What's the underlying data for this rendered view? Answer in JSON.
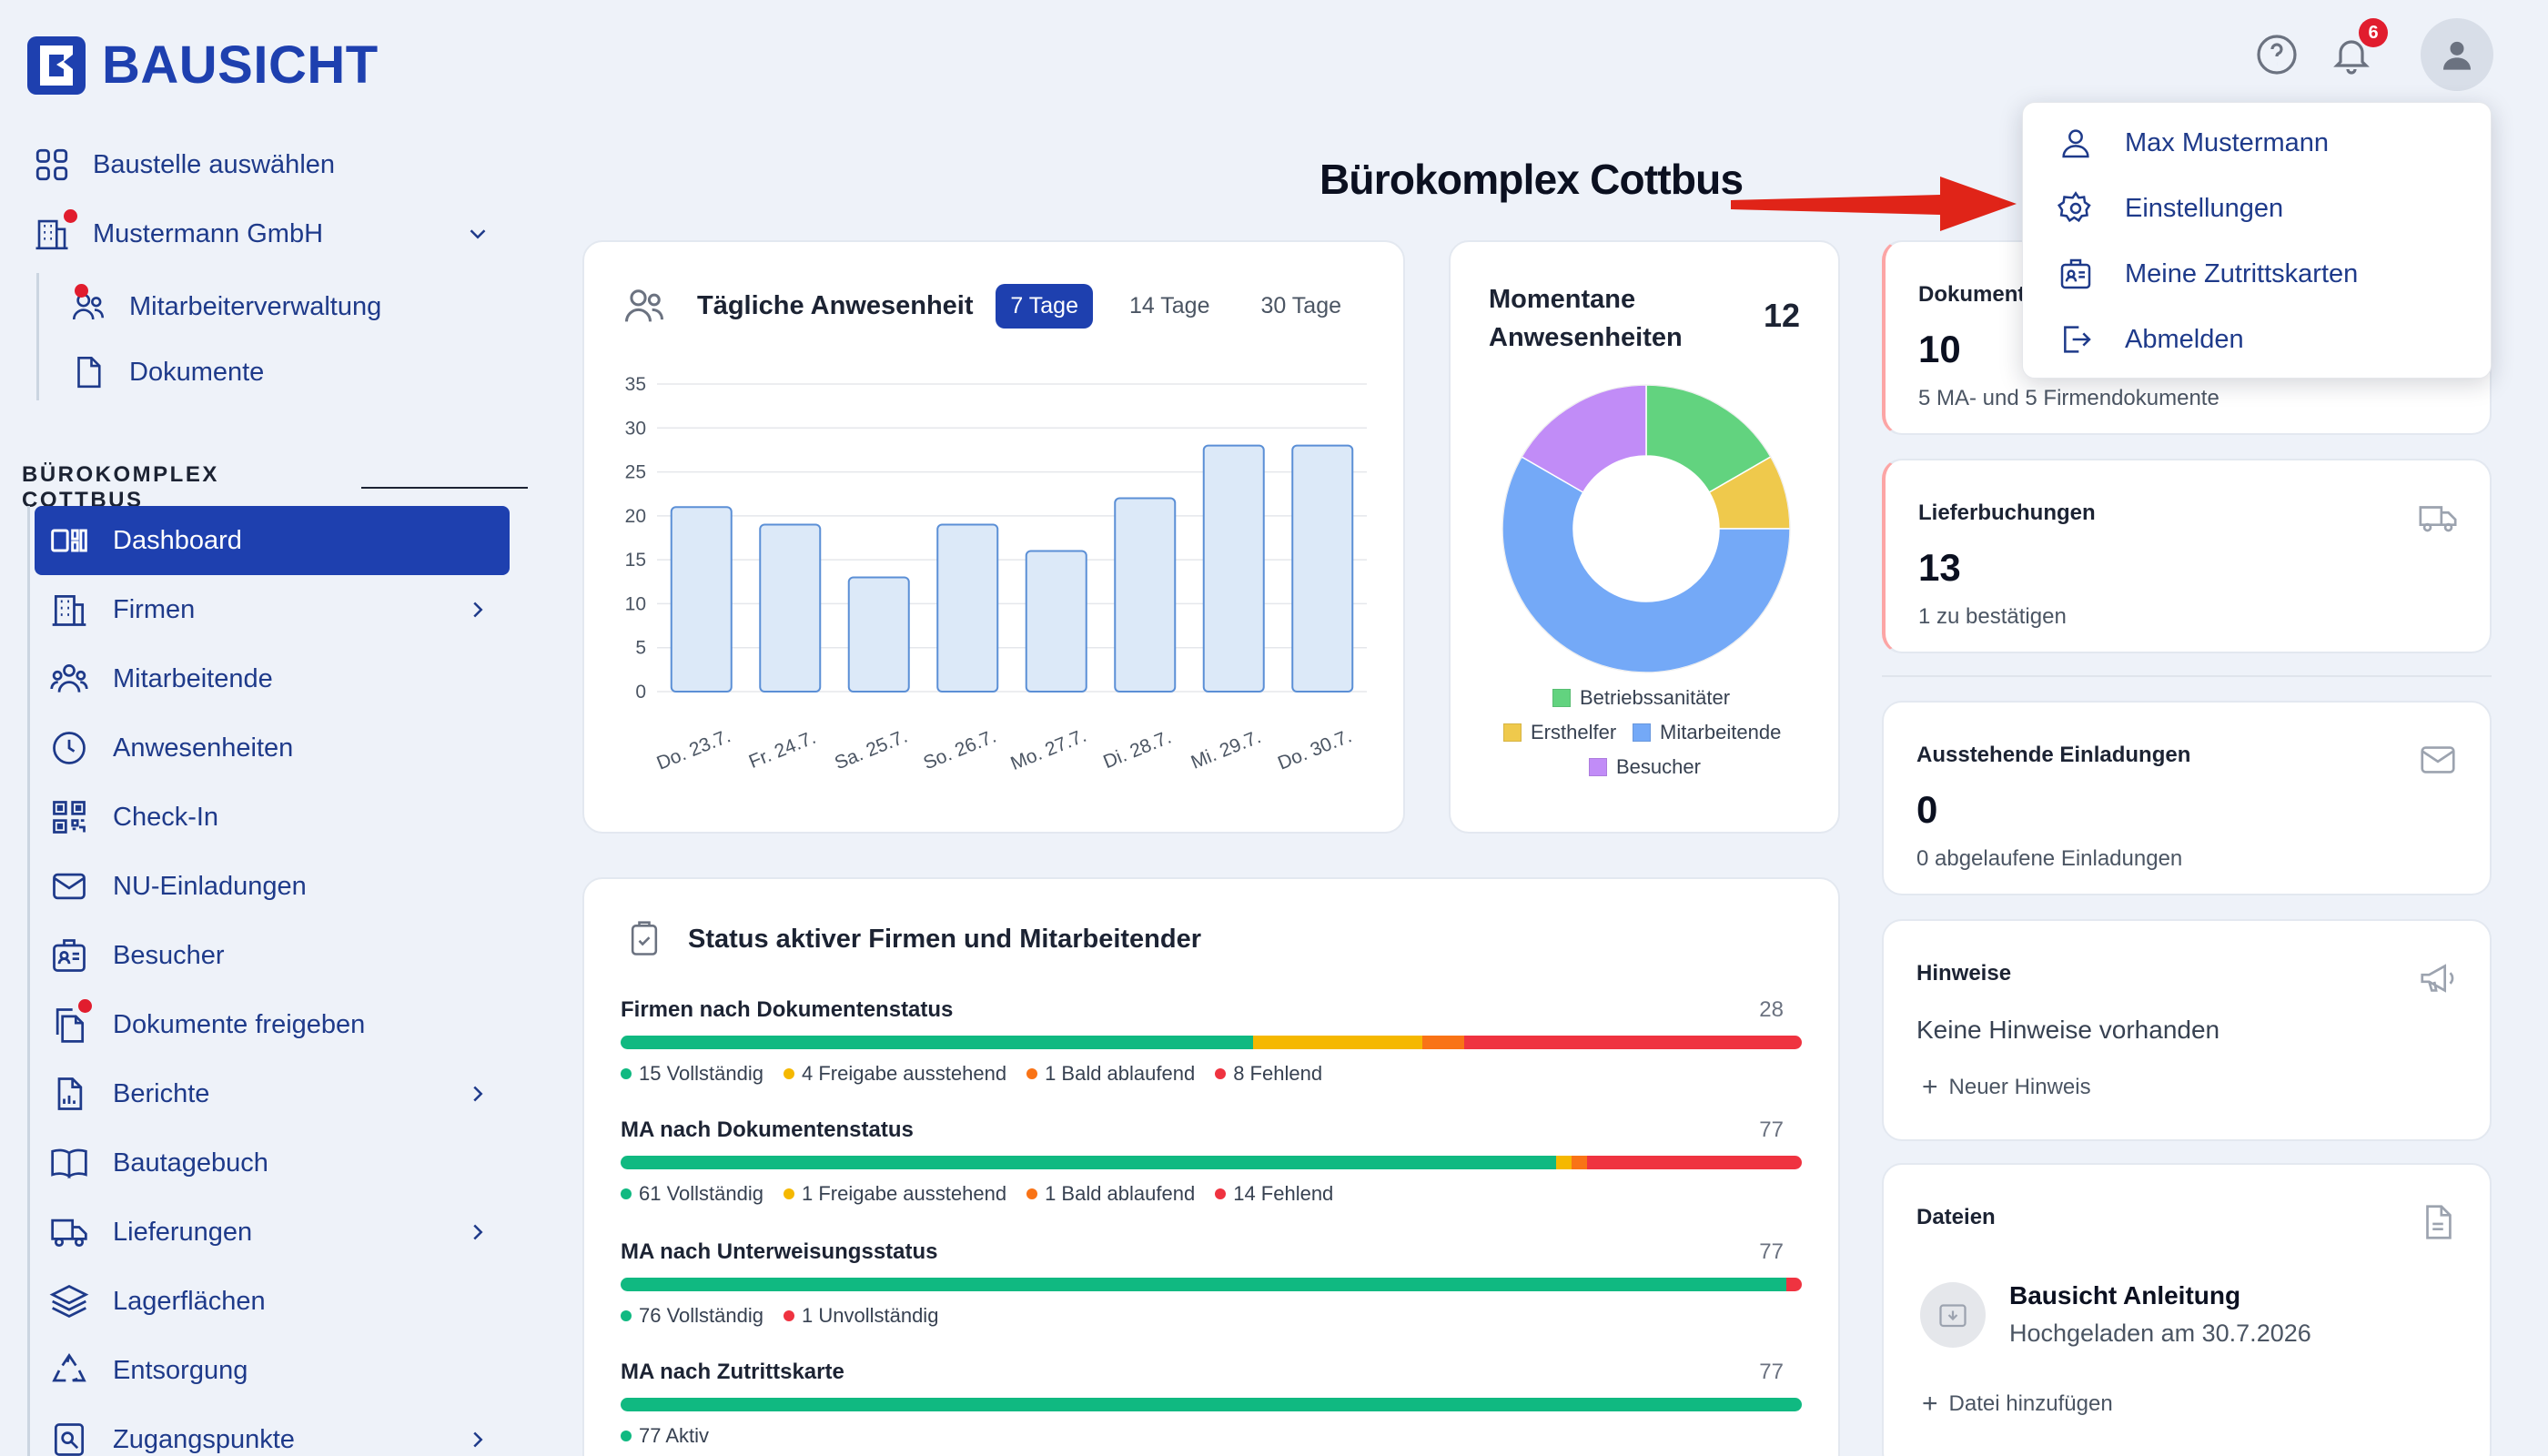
{
  "app": {
    "logo_text": "BAUSICHT"
  },
  "top_nav": {
    "select_site": "Baustelle auswählen",
    "company": "Mustermann GmbH",
    "sub_items": [
      "Mitarbeiterverwaltung",
      "Dokumente"
    ]
  },
  "site_section": "BÜROKOMPLEX COTTBUS",
  "sidebar": {
    "items": [
      {
        "label": "Dashboard",
        "icon": "dashboard-icon"
      },
      {
        "label": "Firmen",
        "icon": "building-icon"
      },
      {
        "label": "Mitarbeitende",
        "icon": "users-icon"
      },
      {
        "label": "Anwesenheiten",
        "icon": "clock-icon"
      },
      {
        "label": "Check-In",
        "icon": "qr-icon"
      },
      {
        "label": "NU-Einladungen",
        "icon": "mail-icon"
      },
      {
        "label": "Besucher",
        "icon": "badge-icon"
      },
      {
        "label": "Dokumente freigeben",
        "icon": "documents-icon"
      },
      {
        "label": "Berichte",
        "icon": "report-icon"
      },
      {
        "label": "Bautagebuch",
        "icon": "book-icon"
      },
      {
        "label": "Lieferungen",
        "icon": "truck-icon"
      },
      {
        "label": "Lagerflächen",
        "icon": "layers-icon"
      },
      {
        "label": "Entsorgung",
        "icon": "recycle-icon"
      },
      {
        "label": "Zugangspunkte",
        "icon": "access-icon"
      }
    ]
  },
  "header": {
    "notification_count": "6"
  },
  "page_title": "Bürokomplex Cottbus",
  "user_menu": {
    "items": [
      "Max Mustermann",
      "Einstellungen",
      "Meine Zutrittskarten",
      "Abmelden"
    ]
  },
  "attendance": {
    "title": "Tägliche Anwesenheit",
    "tabs": [
      "7 Tage",
      "14 Tage",
      "30 Tage"
    ],
    "active_tab": "7 Tage"
  },
  "chart_data": [
    {
      "type": "bar",
      "title": "Tägliche Anwesenheit",
      "categories": [
        "Do. 23.7.",
        "Fr. 24.7.",
        "Sa. 25.7.",
        "So. 26.7.",
        "Mo. 27.7.",
        "Di. 28.7.",
        "Mi. 29.7.",
        "Do. 30.7."
      ],
      "values": [
        21,
        19,
        13,
        19,
        16,
        22,
        28,
        28
      ],
      "ylim": [
        0,
        35
      ],
      "yticks": [
        "35",
        "30",
        "25",
        "20",
        "15",
        "10",
        "5",
        "0"
      ],
      "grid": true,
      "colors": {
        "fill": "#dce9f8",
        "stroke": "#5b8fd6"
      }
    },
    {
      "type": "pie",
      "title": "Momentane Anwesenheiten",
      "total": "12",
      "categories": [
        "Betriebssanitäter",
        "Ersthelfer",
        "Mitarbeitende",
        "Besucher"
      ],
      "values": [
        2,
        1,
        7,
        2
      ],
      "colors": [
        "#62d37f",
        "#efc94c",
        "#74a9f7",
        "#c18cf7"
      ],
      "donut": true
    }
  ],
  "cards": {
    "documents": {
      "label": "Dokumente",
      "value": "10",
      "sub": "5 MA- und 5 Firmendokumente"
    },
    "deliveries": {
      "label": "Lieferbuchungen",
      "value": "13",
      "sub": "1 zu bestätigen"
    },
    "invites": {
      "label": "Ausstehende Einladungen",
      "value": "0",
      "sub": "0 abgelaufene Einladungen"
    },
    "notes": {
      "label": "Hinweise",
      "empty": "Keine Hinweise vorhanden",
      "add": "Neuer Hinweis"
    },
    "files": {
      "label": "Dateien",
      "file_name": "Bausicht Anleitung",
      "file_date": "Hochgeladen am 30.7.2026",
      "add": "Datei hinzufügen"
    }
  },
  "status": {
    "title": "Status aktiver Firmen und Mitarbeitender",
    "colors": {
      "complete": "#10b981",
      "pending": "#f5b800",
      "expiring": "#f97316",
      "missing": "#ef3340"
    },
    "rows": [
      {
        "label": "Firmen nach Dokumentenstatus",
        "total": "28",
        "segments": [
          15,
          4,
          1,
          8
        ],
        "legend": [
          "15 Vollständig",
          "4 Freigabe ausstehend",
          "1 Bald ablaufend",
          "8 Fehlend"
        ]
      },
      {
        "label": "MA nach Dokumentenstatus",
        "total": "77",
        "segments": [
          61,
          1,
          1,
          14
        ],
        "legend": [
          "61 Vollständig",
          "1 Freigabe ausstehend",
          "1 Bald ablaufend",
          "14 Fehlend"
        ]
      },
      {
        "label": "MA nach Unterweisungsstatus",
        "total": "77",
        "segments": [
          76,
          0,
          0,
          1
        ],
        "legend": [
          "76 Vollständig",
          "1 Unvollständig"
        ]
      },
      {
        "label": "MA nach Zutrittskarte",
        "total": "77",
        "segments": [
          77,
          0,
          0,
          0
        ],
        "legend": [
          "77 Aktiv"
        ]
      }
    ]
  }
}
